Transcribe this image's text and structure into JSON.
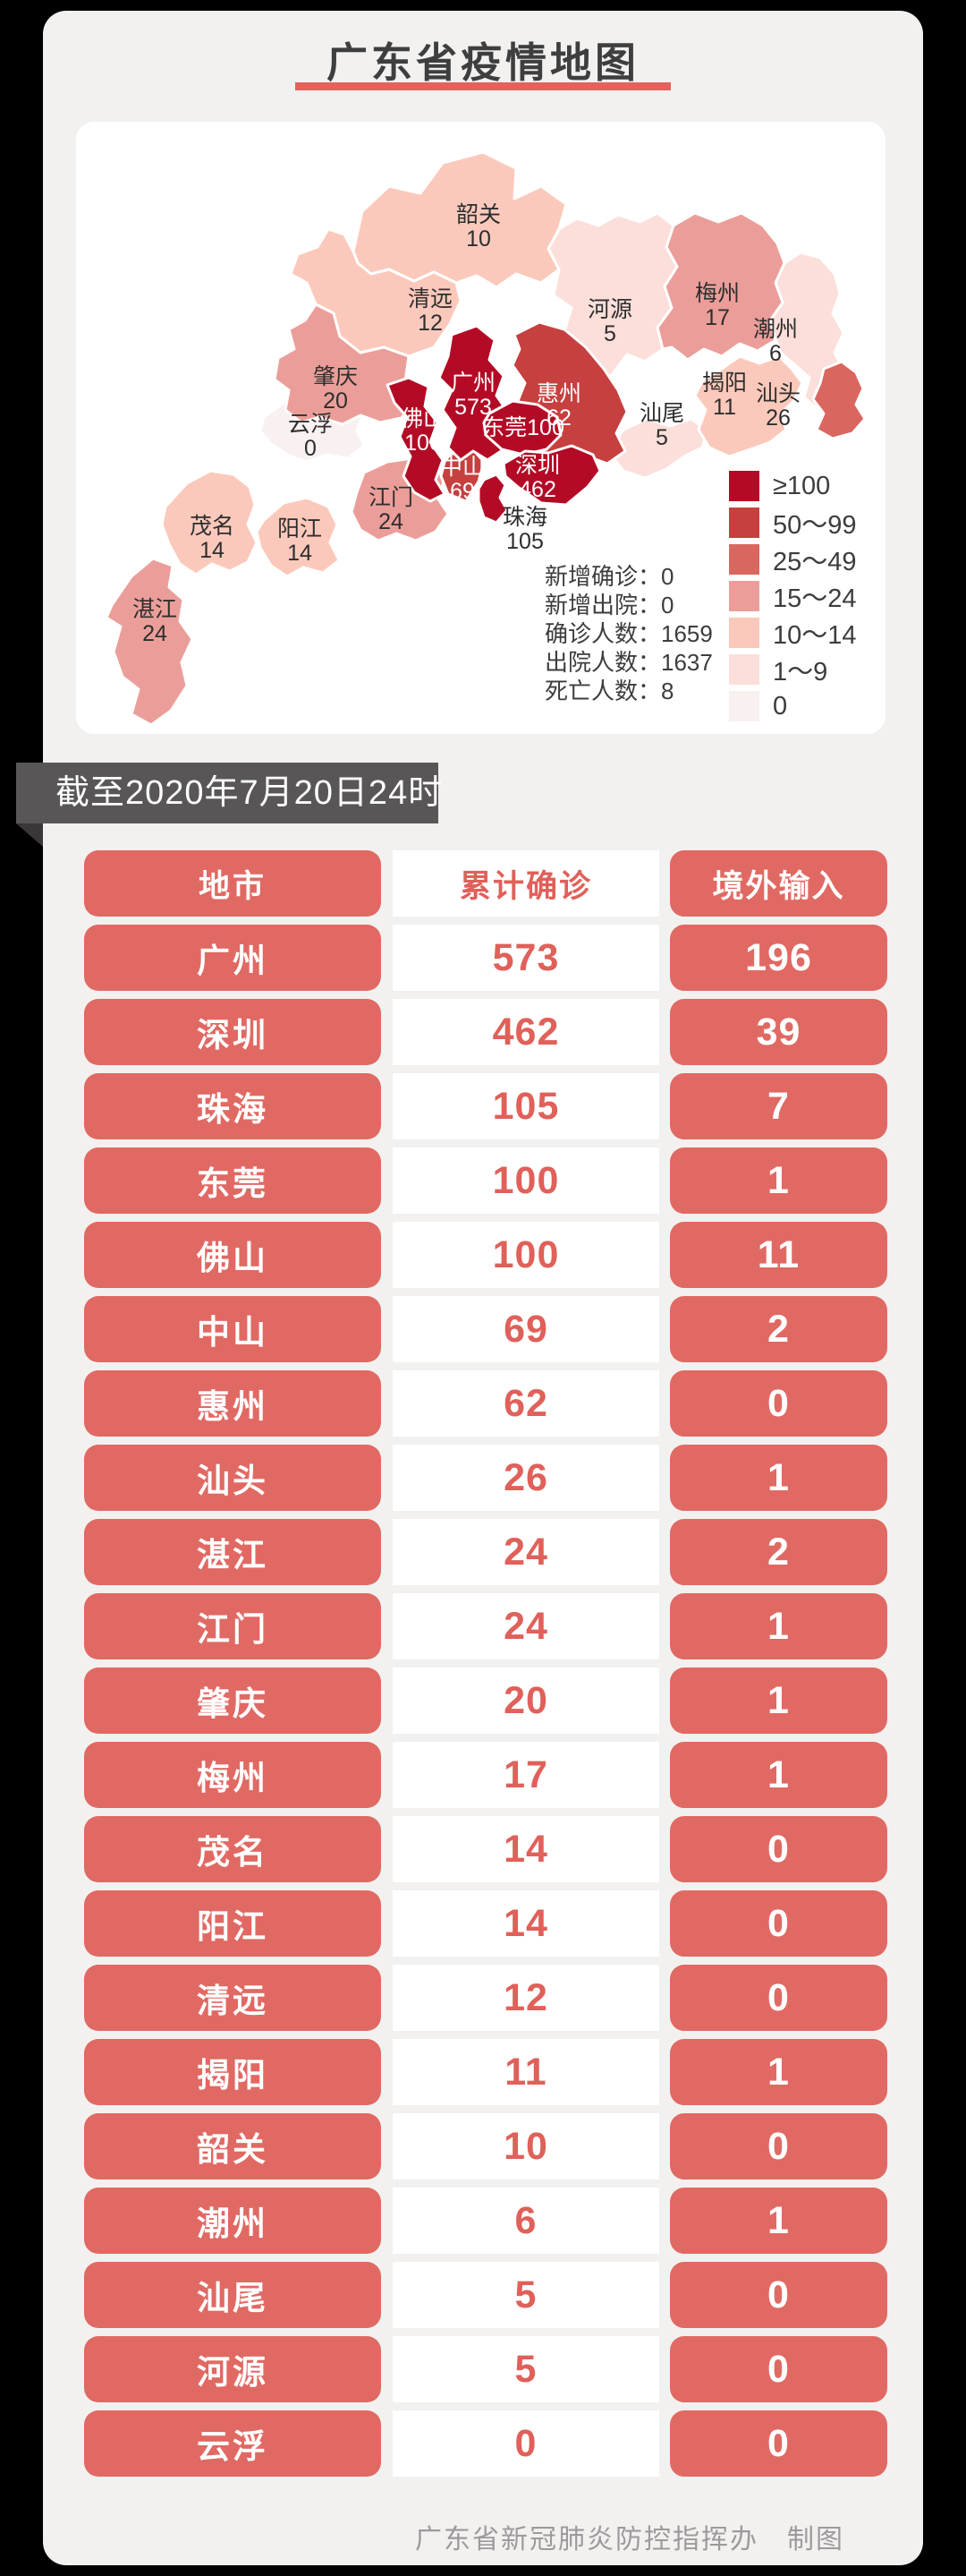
{
  "page": {
    "title": "广东省疫情地图",
    "footer": "广东省新冠肺炎防控指挥办　制图"
  },
  "banner": {
    "text": "截至2020年7月20日24时"
  },
  "map": {
    "legend": [
      {
        "label": "≥100",
        "color": "#b30b26"
      },
      {
        "label": "50～99",
        "color": "#c6403f"
      },
      {
        "label": "25～49",
        "color": "#da6660"
      },
      {
        "label": "15～24",
        "color": "#eb9e99"
      },
      {
        "label": "10～14",
        "color": "#fbc9bb"
      },
      {
        "label": "1～9",
        "color": "#fcdfda"
      },
      {
        "label": "0",
        "color": "#f8f1ef"
      }
    ],
    "stats": [
      {
        "label": "新增确诊：",
        "value": "0"
      },
      {
        "label": "新增出院：",
        "value": "0"
      },
      {
        "label": "确诊人数：",
        "value": "1659"
      },
      {
        "label": "出院人数：",
        "value": "1637"
      },
      {
        "label": "死亡人数：",
        "value": "8"
      }
    ],
    "regions": [
      {
        "name": "云浮",
        "value": "0"
      },
      {
        "name": "河源",
        "value": "5"
      },
      {
        "name": "潮州",
        "value": "6"
      },
      {
        "name": "汕尾",
        "value": "5"
      },
      {
        "name": "韶关",
        "value": "10"
      },
      {
        "name": "清远",
        "value": "12"
      },
      {
        "name": "揭阳",
        "value": "11"
      },
      {
        "name": "茂名",
        "value": "14"
      },
      {
        "name": "阳江",
        "value": "14"
      },
      {
        "name": "湛江",
        "value": "24"
      },
      {
        "name": "肇庆",
        "value": "20"
      },
      {
        "name": "梅州",
        "value": "17"
      },
      {
        "name": "江门",
        "value": "24"
      },
      {
        "name": "惠州",
        "value": "62"
      },
      {
        "name": "中山",
        "value": "69"
      },
      {
        "name": "汕头",
        "value": "26"
      },
      {
        "name": "广州",
        "value": "573"
      },
      {
        "name": "佛山",
        "value": "100"
      },
      {
        "name": "东莞",
        "value": "100"
      },
      {
        "name": "深圳",
        "value": "462"
      },
      {
        "name": "珠海",
        "value": "105"
      }
    ]
  },
  "table": {
    "headers": [
      "地市",
      "累计确诊",
      "境外输入"
    ],
    "rows": [
      [
        "广州",
        "573",
        "196"
      ],
      [
        "深圳",
        "462",
        "39"
      ],
      [
        "珠海",
        "105",
        "7"
      ],
      [
        "东莞",
        "100",
        "1"
      ],
      [
        "佛山",
        "100",
        "11"
      ],
      [
        "中山",
        "69",
        "2"
      ],
      [
        "惠州",
        "62",
        "0"
      ],
      [
        "汕头",
        "26",
        "1"
      ],
      [
        "湛江",
        "24",
        "2"
      ],
      [
        "江门",
        "24",
        "1"
      ],
      [
        "肇庆",
        "20",
        "1"
      ],
      [
        "梅州",
        "17",
        "1"
      ],
      [
        "茂名",
        "14",
        "0"
      ],
      [
        "阳江",
        "14",
        "0"
      ],
      [
        "清远",
        "12",
        "0"
      ],
      [
        "揭阳",
        "11",
        "1"
      ],
      [
        "韶关",
        "10",
        "0"
      ],
      [
        "潮州",
        "6",
        "1"
      ],
      [
        "汕尾",
        "5",
        "0"
      ],
      [
        "河源",
        "5",
        "0"
      ],
      [
        "云浮",
        "0",
        "0"
      ]
    ]
  }
}
